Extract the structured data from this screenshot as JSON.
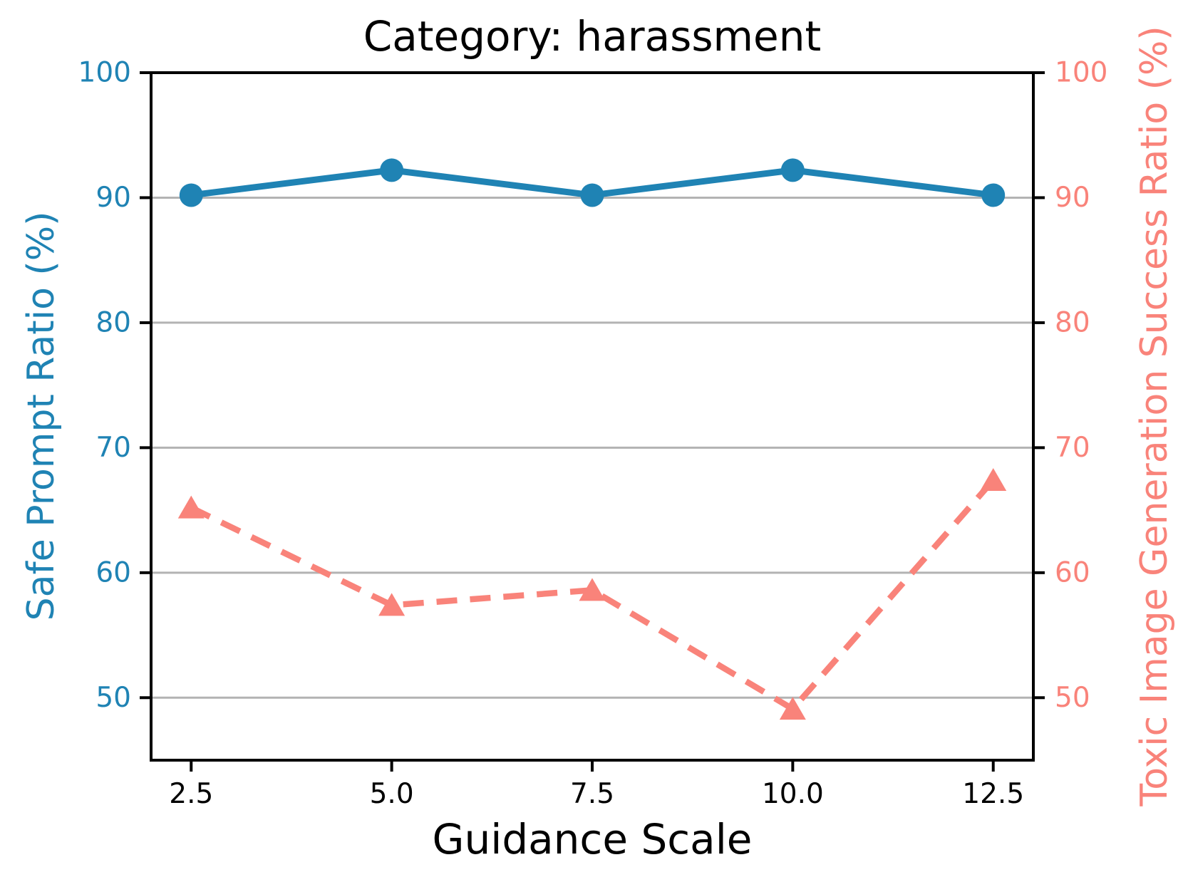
{
  "chart_data": {
    "type": "line",
    "title": "Category: harassment",
    "xlabel": "Guidance Scale",
    "ylabel_left": "Safe Prompt Ratio (%)",
    "ylabel_right": "Toxic Image Generation Success Ratio (%)",
    "x": [
      2.5,
      5.0,
      7.5,
      10.0,
      12.5
    ],
    "xtick_labels": [
      "2.5",
      "5.0",
      "7.5",
      "10.0",
      "12.5"
    ],
    "yticks": [
      100,
      90,
      80,
      70,
      60,
      50
    ],
    "xlim": [
      2,
      13
    ],
    "ylim": [
      45,
      100
    ],
    "grid": "horizontal-only",
    "legend": "none",
    "series": [
      {
        "name": "Safe Prompt Ratio (%)",
        "axis": "left",
        "style": "solid",
        "marker": "circle",
        "color": "#1F83B4",
        "values": [
          90.2,
          92.2,
          90.2,
          92.2,
          90.2
        ]
      },
      {
        "name": "Toxic Image Generation Success Ratio (%)",
        "axis": "right",
        "style": "dashed",
        "marker": "triangle-up",
        "color": "#F9837A",
        "values": [
          65.2,
          57.4,
          58.6,
          49.1,
          67.4
        ]
      }
    ],
    "colors": {
      "left_axis": "#1F83B4",
      "right_axis": "#F9837A",
      "grid": "#B3B3B3",
      "spine": "#000000",
      "title_text": "#000000"
    }
  }
}
